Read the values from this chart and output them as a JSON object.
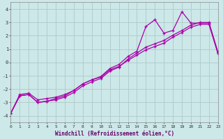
{
  "xlabel": "Windchill (Refroidissement éolien,°C)",
  "background_color": "#cce8e8",
  "grid_color": "#b0c8c8",
  "line_color": "#aa00aa",
  "xlim": [
    0,
    23
  ],
  "ylim": [
    -4.5,
    4.5
  ],
  "xticks": [
    0,
    1,
    2,
    3,
    4,
    5,
    6,
    7,
    8,
    9,
    10,
    11,
    12,
    13,
    14,
    15,
    16,
    17,
    18,
    19,
    20,
    21,
    22,
    23
  ],
  "yticks": [
    -4,
    -3,
    -2,
    -1,
    0,
    1,
    2,
    3,
    4
  ],
  "line1_x": [
    0,
    1,
    2,
    3,
    4,
    5,
    6,
    7,
    8,
    9,
    10,
    11,
    12,
    13,
    14,
    15,
    16,
    17,
    18,
    19,
    20,
    21,
    22,
    23
  ],
  "line1_y": [
    -3.8,
    -2.5,
    -2.4,
    -3.0,
    -2.9,
    -2.8,
    -2.6,
    -2.25,
    -1.75,
    -1.45,
    -1.2,
    -0.65,
    -0.35,
    0.25,
    0.7,
    1.15,
    1.4,
    1.65,
    2.05,
    2.4,
    2.8,
    3.0,
    3.0,
    0.75
  ],
  "line2_x": [
    0,
    1,
    2,
    3,
    4,
    5,
    6,
    7,
    8,
    9,
    10,
    11,
    12,
    13,
    14,
    15,
    16,
    17,
    18,
    19,
    20,
    21,
    22,
    23
  ],
  "line2_y": [
    -3.8,
    -2.5,
    -2.4,
    -3.0,
    -2.9,
    -2.7,
    -2.5,
    -2.1,
    -1.6,
    -1.3,
    -1.05,
    -0.45,
    -0.15,
    0.45,
    0.85,
    2.7,
    3.2,
    2.2,
    2.4,
    3.8,
    2.95,
    2.95,
    2.95,
    0.75
  ],
  "line3_x": [
    0,
    1,
    2,
    3,
    4,
    5,
    6,
    7,
    8,
    9,
    10,
    11,
    12,
    13,
    14,
    15,
    16,
    17,
    18,
    19,
    20,
    21,
    22,
    23
  ],
  "line3_y": [
    -3.8,
    -2.4,
    -2.3,
    -2.8,
    -2.7,
    -2.6,
    -2.4,
    -2.1,
    -1.6,
    -1.3,
    -1.1,
    -0.55,
    -0.3,
    0.15,
    0.55,
    0.95,
    1.2,
    1.45,
    1.9,
    2.25,
    2.65,
    2.85,
    2.85,
    0.65
  ]
}
